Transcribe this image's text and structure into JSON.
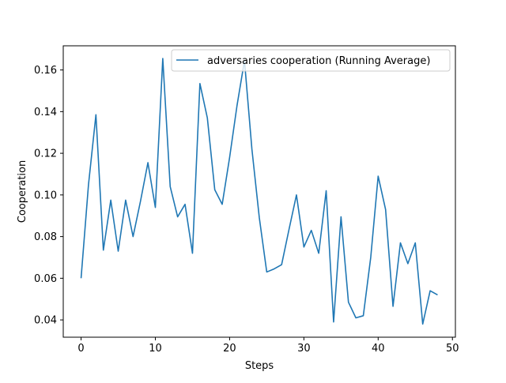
{
  "chart_data": {
    "type": "line",
    "title": "",
    "xlabel": "Steps",
    "ylabel": "Cooperation",
    "xlim": [
      -2.4,
      50.4
    ],
    "ylim": [
      0.0317,
      0.1716
    ],
    "xticks": [
      0,
      10,
      20,
      30,
      40,
      50
    ],
    "xtick_labels": [
      "0",
      "10",
      "20",
      "30",
      "40",
      "50"
    ],
    "yticks": [
      0.04,
      0.06,
      0.08,
      0.1,
      0.12,
      0.14,
      0.16
    ],
    "ytick_labels": [
      "0.04",
      "0.06",
      "0.08",
      "0.10",
      "0.12",
      "0.14",
      "0.16"
    ],
    "grid": false,
    "legend_position": "top-right",
    "series": [
      {
        "name": "adversaries cooperation (Running Average)",
        "color": "#1f77b4",
        "x": [
          0,
          1,
          2,
          3,
          4,
          5,
          6,
          7,
          8,
          9,
          10,
          11,
          12,
          13,
          14,
          15,
          16,
          17,
          18,
          19,
          20,
          21,
          22,
          23,
          24,
          25,
          26,
          27,
          28,
          29,
          30,
          31,
          32,
          33,
          34,
          35,
          36,
          37,
          38,
          39,
          40,
          41,
          42,
          43,
          44,
          45,
          46,
          47,
          48
        ],
        "values": [
          0.06,
          0.105,
          0.1385,
          0.0735,
          0.0975,
          0.073,
          0.0975,
          0.08,
          0.097,
          0.1155,
          0.094,
          0.1655,
          0.104,
          0.0895,
          0.0955,
          0.072,
          0.1535,
          0.137,
          0.1025,
          0.0955,
          0.118,
          0.143,
          0.1645,
          0.122,
          0.089,
          0.063,
          0.0645,
          0.0665,
          0.0835,
          0.1,
          0.075,
          0.083,
          0.072,
          0.102,
          0.039,
          0.0895,
          0.0485,
          0.041,
          0.042,
          0.07,
          0.109,
          0.093,
          0.0465,
          0.077,
          0.067,
          0.077,
          0.038,
          0.054,
          0.052
        ]
      }
    ]
  }
}
